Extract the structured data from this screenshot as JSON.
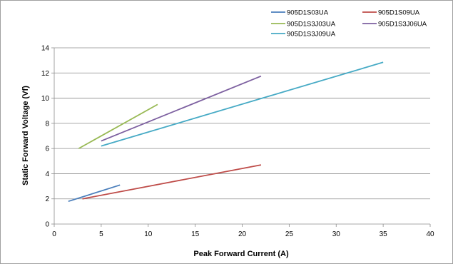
{
  "chart_data": {
    "type": "line",
    "title": "",
    "xlabel": "Peak Forward Current (A)",
    "ylabel": "Static Forward Voltage (Vf)",
    "xlim": [
      0,
      40
    ],
    "ylim": [
      0,
      14
    ],
    "xticks": [
      0,
      5,
      10,
      15,
      20,
      25,
      30,
      35,
      40
    ],
    "yticks": [
      0,
      2,
      4,
      6,
      8,
      10,
      12,
      14
    ],
    "grid": "horizontal",
    "legend_position": "top-right",
    "series": [
      {
        "name": "905D1S03UA",
        "color": "#4a7ebb",
        "x": [
          1.5,
          7
        ],
        "y": [
          1.8,
          3.1
        ]
      },
      {
        "name": "905D1S09UA",
        "color": "#be4b48",
        "x": [
          3,
          22
        ],
        "y": [
          2.0,
          4.7
        ]
      },
      {
        "name": "905D1S3J03UA",
        "color": "#98b954",
        "x": [
          2.6,
          11
        ],
        "y": [
          6.0,
          9.5
        ]
      },
      {
        "name": "905D1S3J06UA",
        "color": "#7d60a0",
        "x": [
          5,
          22
        ],
        "y": [
          6.6,
          11.75
        ]
      },
      {
        "name": "905D1S3J09UA",
        "color": "#46aac5",
        "x": [
          5,
          35
        ],
        "y": [
          6.2,
          12.85
        ]
      }
    ]
  }
}
